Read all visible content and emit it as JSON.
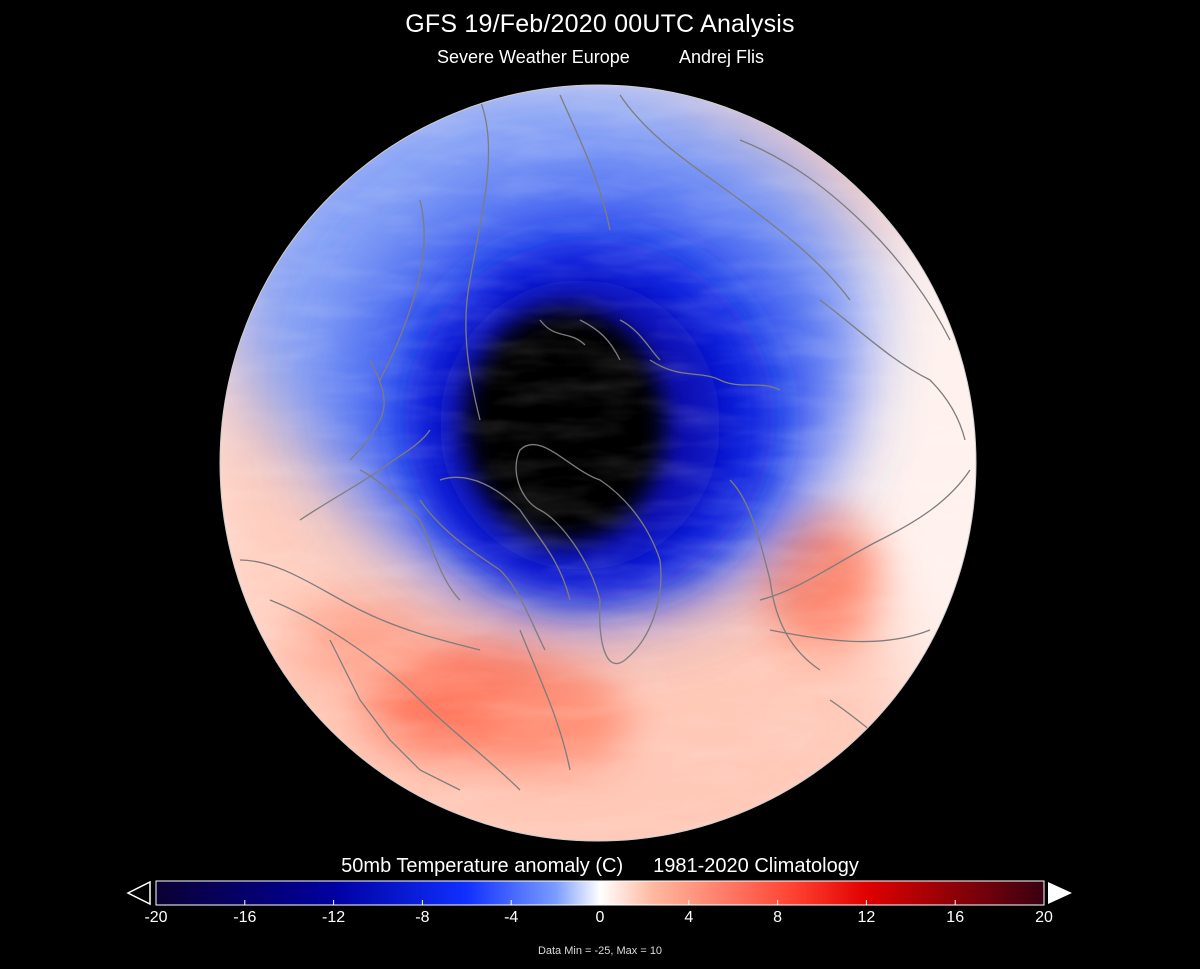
{
  "header": {
    "title": "GFS 19/Feb/2020 00UTC Analysis",
    "credit_org": "Severe Weather Europe",
    "credit_author": "Andrej Flis"
  },
  "colorbar": {
    "title_left": "50mb Temperature anomaly (C)",
    "title_right": "1981-2020 Climatology",
    "ticks": [
      "-20",
      "-16",
      "-12",
      "-8",
      "-4",
      "0",
      "4",
      "8",
      "12",
      "16",
      "20"
    ],
    "range": [
      -20,
      20
    ],
    "colors": {
      "min": "#0a0033",
      "deep_blue": "#0000a0",
      "blue": "#1030ff",
      "light_blue": "#7a9cff",
      "white": "#ffffff",
      "light_red": "#ffb8a0",
      "red": "#ff4030",
      "deep_red": "#e00000",
      "max": "#3a0010"
    },
    "data_range_text": "Data Min = -25, Max = 10"
  },
  "map": {
    "projection": "polar stereographic (north pole)",
    "field": "50mb temperature anomaly",
    "coast_color": "#808080"
  }
}
